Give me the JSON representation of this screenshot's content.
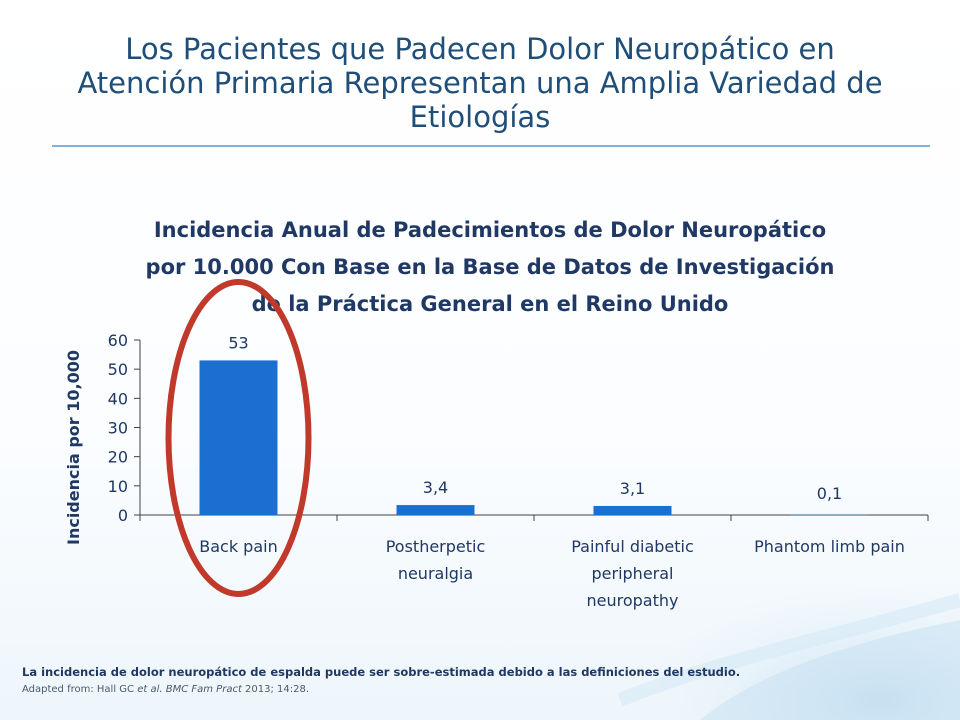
{
  "slide": {
    "title_line1": "Los Pacientes que Padecen Dolor Neuropático en",
    "title_line2": "Atención Primaria Representan una Amplia Variedad de",
    "title_line3": "Etiologías",
    "footnote": "La incidencia de dolor neuropático de espalda puede ser sobre-estimada debido a las definiciones del estudio.",
    "source_prefix": "Adapted from: Hall GC ",
    "source_etal": "et al.",
    "source_journal": "BMC Fam Pract",
    "source_suffix": " 2013; 14:28."
  },
  "chart_data": {
    "type": "bar",
    "title_lines": [
      "Incidencia Anual de Padecimientos de Dolor Neuropático",
      "por  10.000 Con Base en la Base de Datos de Investigación",
      "de la Práctica General en el Reino Unido"
    ],
    "categories": [
      [
        "Back pain"
      ],
      [
        "Postherpetic",
        "neuralgia"
      ],
      [
        "Painful diabetic",
        "peripheral",
        "neuropathy"
      ],
      [
        "Phantom limb pain"
      ]
    ],
    "values": [
      53,
      3.4,
      3.1,
      0.1
    ],
    "data_labels": [
      "53",
      "3,4",
      "3,1",
      "0,1"
    ],
    "ylabel": "Incidencia por 10,000",
    "ylim": [
      0,
      60
    ],
    "yticks": [
      0,
      10,
      20,
      30,
      40,
      50,
      60
    ],
    "grid": false,
    "highlight": {
      "category_index": 0,
      "shape": "ellipse",
      "color": "#c0392b"
    },
    "colors": {
      "bar": "#1a6fd1",
      "axis": "#404040",
      "text": "#1f3864"
    }
  }
}
